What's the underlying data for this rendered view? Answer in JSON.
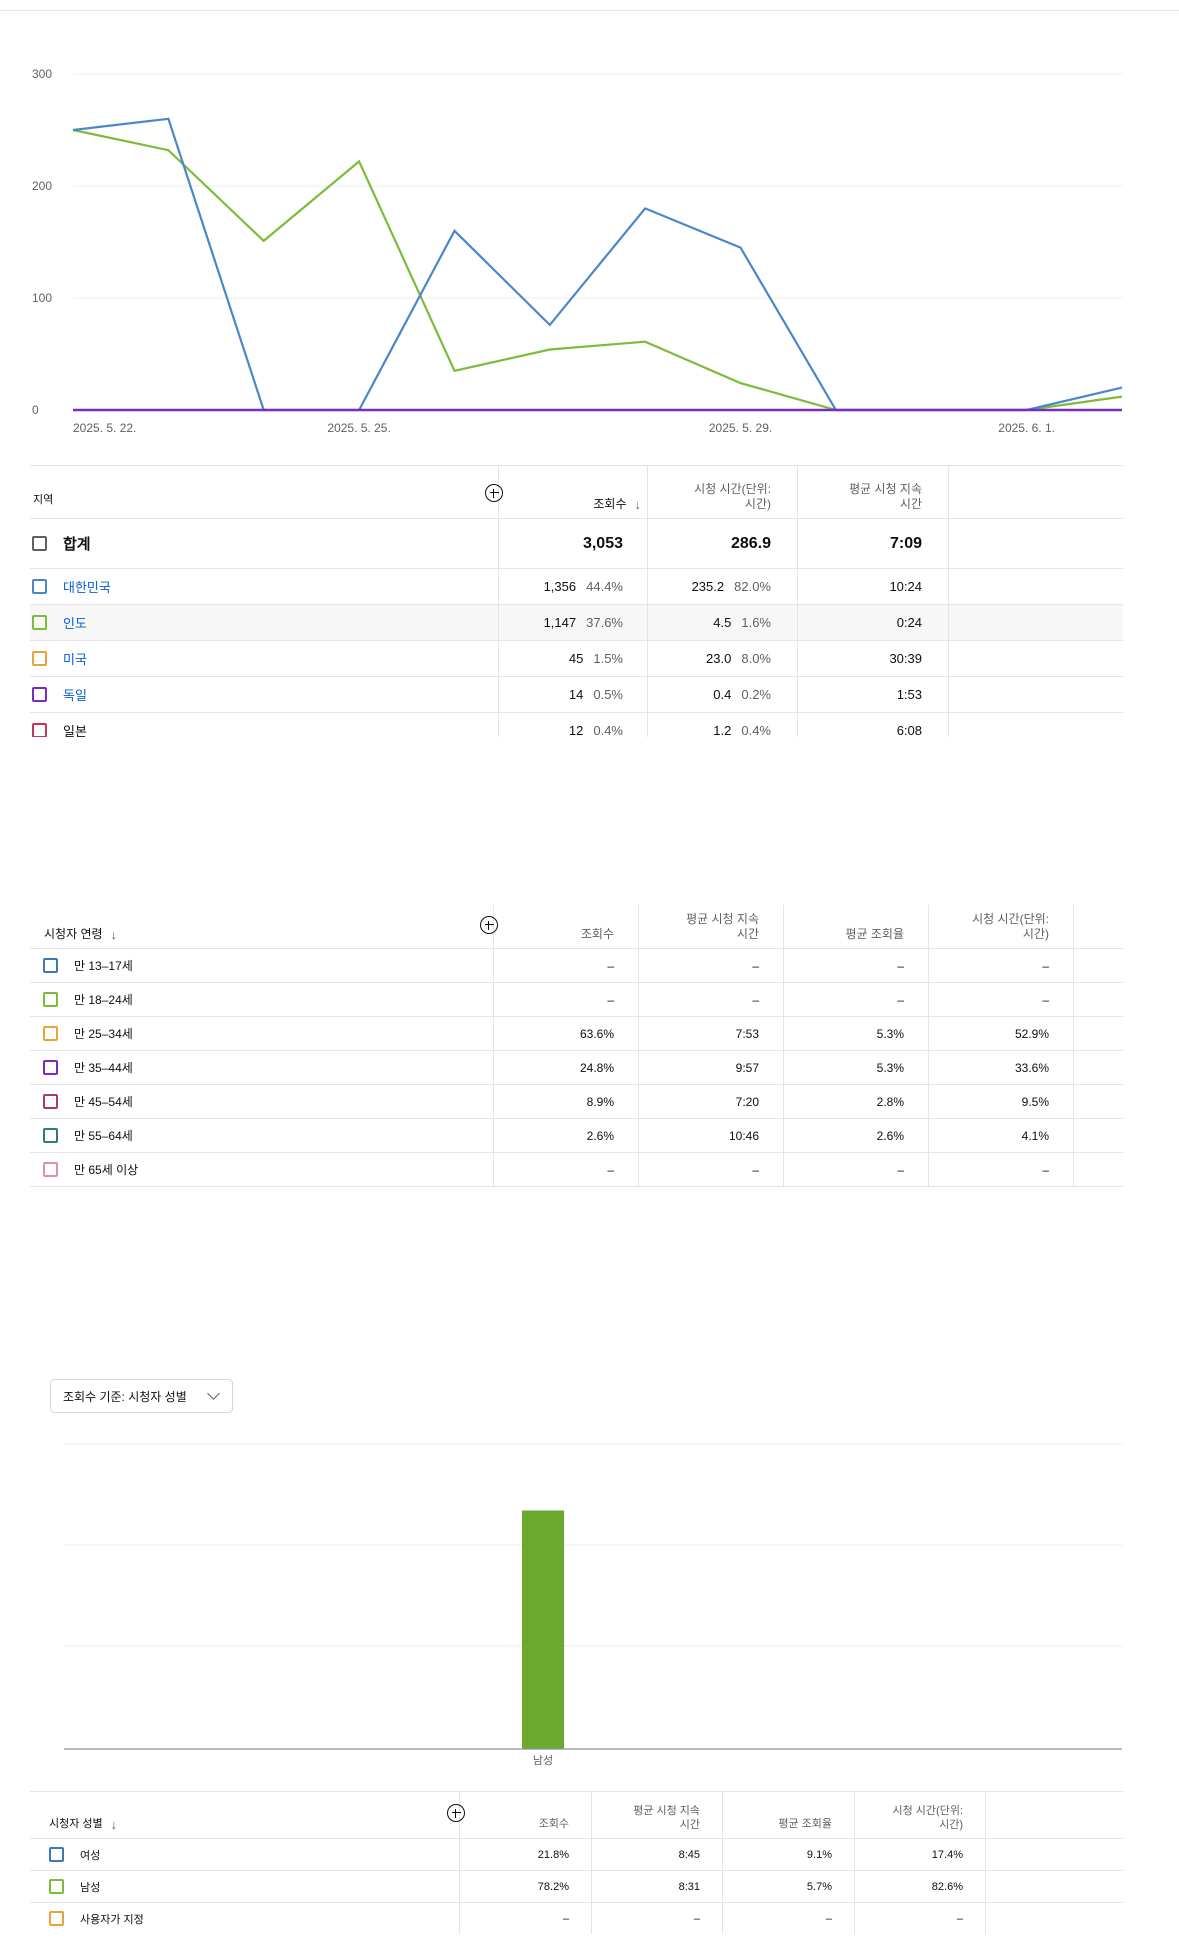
{
  "line_chart": {
    "y_ticks": [
      "300",
      "200",
      "100",
      "0"
    ],
    "x_tick_labels": [
      "2025. 5. 22.",
      "2025. 5. 25.",
      "2025. 5. 29.",
      "2025. 6. 1."
    ],
    "colors": {
      "blue": "#4a87c8",
      "green": "#7cbc3a",
      "purple": "#7b2cbf",
      "grid": "#ececec"
    }
  },
  "chart_data": [
    {
      "type": "line",
      "x": [
        "2025-05-22",
        "2025-05-23",
        "2025-05-24",
        "2025-05-25",
        "2025-05-26",
        "2025-05-27",
        "2025-05-28",
        "2025-05-29",
        "2025-05-30",
        "2025-05-31",
        "2025-06-01",
        "2025-06-02"
      ],
      "x_tick_labels": [
        "2025. 5. 22.",
        "2025. 5. 25.",
        "2025. 5. 29.",
        "2025. 6. 1."
      ],
      "ylim": [
        0,
        300
      ],
      "y_ticks": [
        0,
        100,
        200,
        300
      ],
      "grid": true,
      "series": [
        {
          "name": "대한민국",
          "color": "#4a87c8",
          "values": [
            250,
            260,
            0,
            0,
            160,
            76,
            180,
            145,
            0,
            0,
            0,
            20
          ]
        },
        {
          "name": "인도",
          "color": "#7cbc3a",
          "values": [
            250,
            232,
            151,
            222,
            35,
            54,
            61,
            24,
            0,
            0,
            0,
            12
          ]
        },
        {
          "name": "독일",
          "color": "#7b2cbf",
          "values": [
            0,
            0,
            0,
            0,
            0,
            0,
            0,
            0,
            0,
            0,
            0,
            0
          ]
        }
      ]
    },
    {
      "type": "bar",
      "categories": [
        "남성"
      ],
      "values": [
        78.2
      ],
      "series": [
        {
          "name": "남성",
          "values": [
            78.2
          ]
        }
      ],
      "color": "#6aa82e",
      "grid": true
    }
  ],
  "region_table": {
    "header": {
      "region": "지역",
      "views": "조회수",
      "watch_time_l1": "시청 시간(단위:",
      "watch_time_l2": "시간)",
      "avg_duration_l1": "평균 시청 지속",
      "avg_duration_l2": "시간"
    },
    "total": {
      "label": "합계",
      "views": "3,053",
      "watch_time": "286.9",
      "avg_duration": "7:09"
    },
    "rows": [
      {
        "color": "#4a87c8",
        "label": "대한민국",
        "views": "1,356",
        "views_pct": "44.4%",
        "watch_time": "235.2",
        "watch_pct": "82.0%",
        "avg_duration": "10:24"
      },
      {
        "color": "#7cbc3a",
        "label": "인도",
        "views": "1,147",
        "views_pct": "37.6%",
        "watch_time": "4.5",
        "watch_pct": "1.6%",
        "avg_duration": "0:24"
      },
      {
        "color": "#e8a33d",
        "label": "미국",
        "views": "45",
        "views_pct": "1.5%",
        "watch_time": "23.0",
        "watch_pct": "8.0%",
        "avg_duration": "30:39"
      },
      {
        "color": "#7b2cbf",
        "label": "독일",
        "views": "14",
        "views_pct": "0.5%",
        "watch_time": "0.4",
        "watch_pct": "0.2%",
        "avg_duration": "1:53"
      },
      {
        "color": "#c2385a",
        "label": "일본",
        "views": "12",
        "views_pct": "0.4%",
        "watch_time": "1.2",
        "watch_pct": "0.4%",
        "avg_duration": "6:08"
      }
    ]
  },
  "age_table": {
    "header": {
      "age": "시청자 연령",
      "views": "조회수",
      "avg_duration_l1": "평균 시청 지속",
      "avg_duration_l2": "시간",
      "avg_view_pct": "평균 조회율",
      "watch_time_l1": "시청 시간(단위:",
      "watch_time_l2": "시간)"
    },
    "rows": [
      {
        "color": "#3b78b8",
        "label": "만 13–17세",
        "views": "–",
        "avg_duration": "–",
        "avg_view_pct": "–",
        "watch_time": "–"
      },
      {
        "color": "#7cbc3a",
        "label": "만 18–24세",
        "views": "–",
        "avg_duration": "–",
        "avg_view_pct": "–",
        "watch_time": "–"
      },
      {
        "color": "#e8a33d",
        "label": "만 25–34세",
        "views": "63.6%",
        "avg_duration": "7:53",
        "avg_view_pct": "5.3%",
        "watch_time": "52.9%"
      },
      {
        "color": "#7b2cbf",
        "label": "만 35–44세",
        "views": "24.8%",
        "avg_duration": "9:57",
        "avg_view_pct": "5.3%",
        "watch_time": "33.6%"
      },
      {
        "color": "#b8385a",
        "label": "만 45–54세",
        "views": "8.9%",
        "avg_duration": "7:20",
        "avg_view_pct": "2.8%",
        "watch_time": "9.5%"
      },
      {
        "color": "#2f7d7a",
        "label": "만 55–64세",
        "views": "2.6%",
        "avg_duration": "10:46",
        "avg_view_pct": "2.6%",
        "watch_time": "4.1%"
      },
      {
        "color": "#e38ab8",
        "label": "만 65세 이상",
        "views": "–",
        "avg_duration": "–",
        "avg_view_pct": "–",
        "watch_time": "–"
      }
    ]
  },
  "gender_dropdown": {
    "label": "조회수 기준: 시청자 성별"
  },
  "gender_chart": {
    "category_label": "남성"
  },
  "gender_table": {
    "header": {
      "gender": "시청자 성별",
      "views": "조회수",
      "avg_duration_l1": "평균 시청 지속",
      "avg_duration_l2": "시간",
      "avg_view_pct": "평균 조회율",
      "watch_time_l1": "시청 시간(단위:",
      "watch_time_l2": "시간)"
    },
    "rows": [
      {
        "color": "#3b78b8",
        "label": "여성",
        "views": "21.8%",
        "avg_duration": "8:45",
        "avg_view_pct": "9.1%",
        "watch_time": "17.4%"
      },
      {
        "color": "#7cbc3a",
        "label": "남성",
        "views": "78.2%",
        "avg_duration": "8:31",
        "avg_view_pct": "5.7%",
        "watch_time": "82.6%"
      },
      {
        "color": "#e8a33d",
        "label": "사용자가 지정",
        "views": "–",
        "avg_duration": "–",
        "avg_view_pct": "–",
        "watch_time": "–"
      }
    ]
  }
}
